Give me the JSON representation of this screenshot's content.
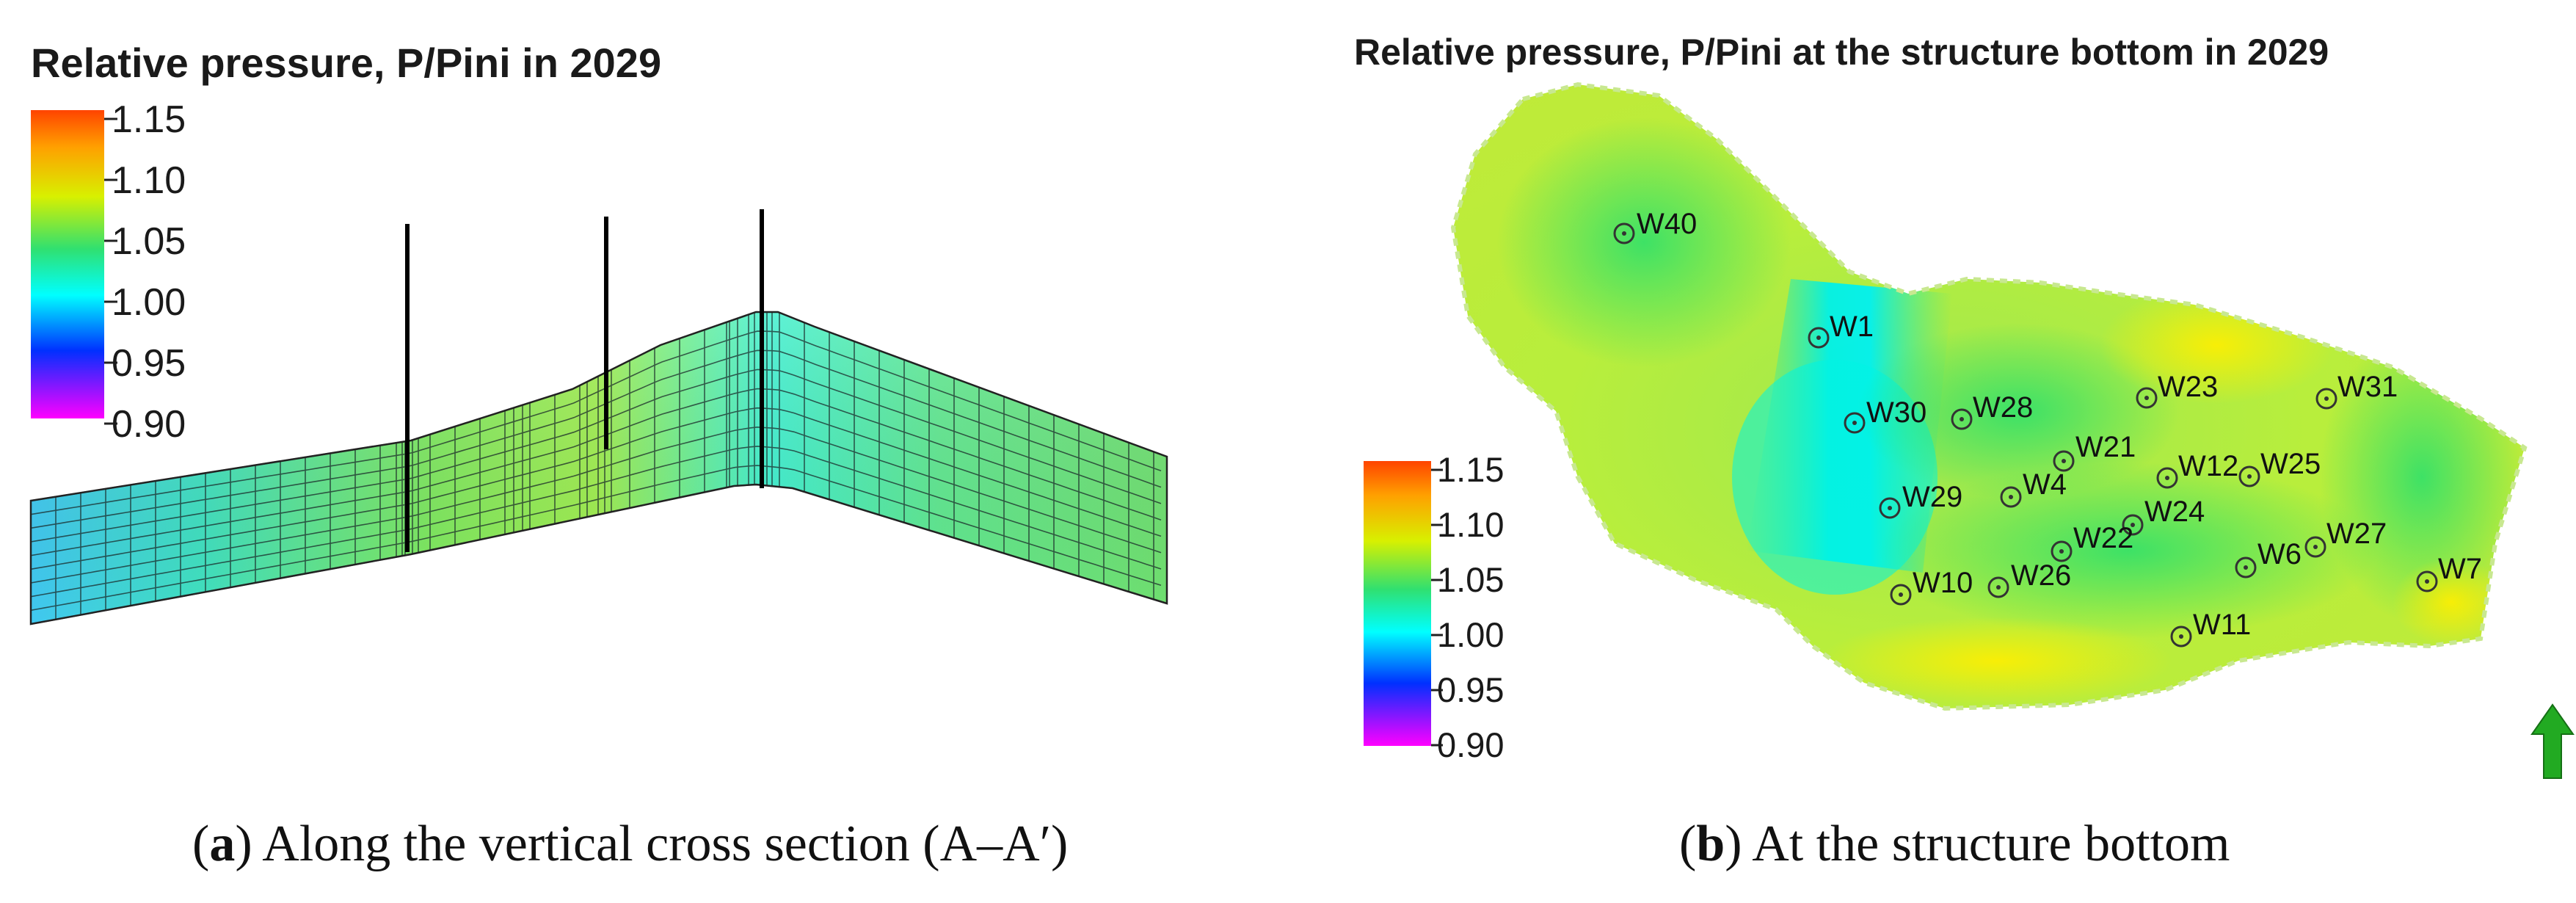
{
  "panel_a": {
    "title": "Relative pressure, P/Pini  in 2029",
    "colorbar_ticks": [
      "1.15",
      "1.10",
      "1.05",
      "1.00",
      "0.95",
      "0.90"
    ],
    "caption_letter": "a",
    "caption_text": "Along the vertical cross section (A–A′)"
  },
  "panel_b": {
    "title": "Relative pressure, P/Pini at the structure bottom in 2029",
    "colorbar_ticks": [
      "1.15",
      "1.10",
      "1.05",
      "1.00",
      "0.95",
      "0.90"
    ],
    "wells": [
      "W40",
      "W1",
      "W30",
      "W28",
      "W23",
      "W31",
      "W21",
      "W12",
      "W25",
      "W29",
      "W4",
      "W24",
      "W22",
      "W6",
      "W27",
      "W7",
      "W10",
      "W26",
      "W11"
    ],
    "caption_letter": "b",
    "caption_text": "At the structure bottom"
  },
  "colors": {
    "scale": [
      "#ff00ff",
      "#0000ff",
      "#00ffff",
      "#00e676",
      "#c8f000",
      "#ffcc00",
      "#ff4400"
    ],
    "north_arrow": "#22aa22"
  },
  "icons": {
    "north_arrow": "north-arrow-icon"
  }
}
